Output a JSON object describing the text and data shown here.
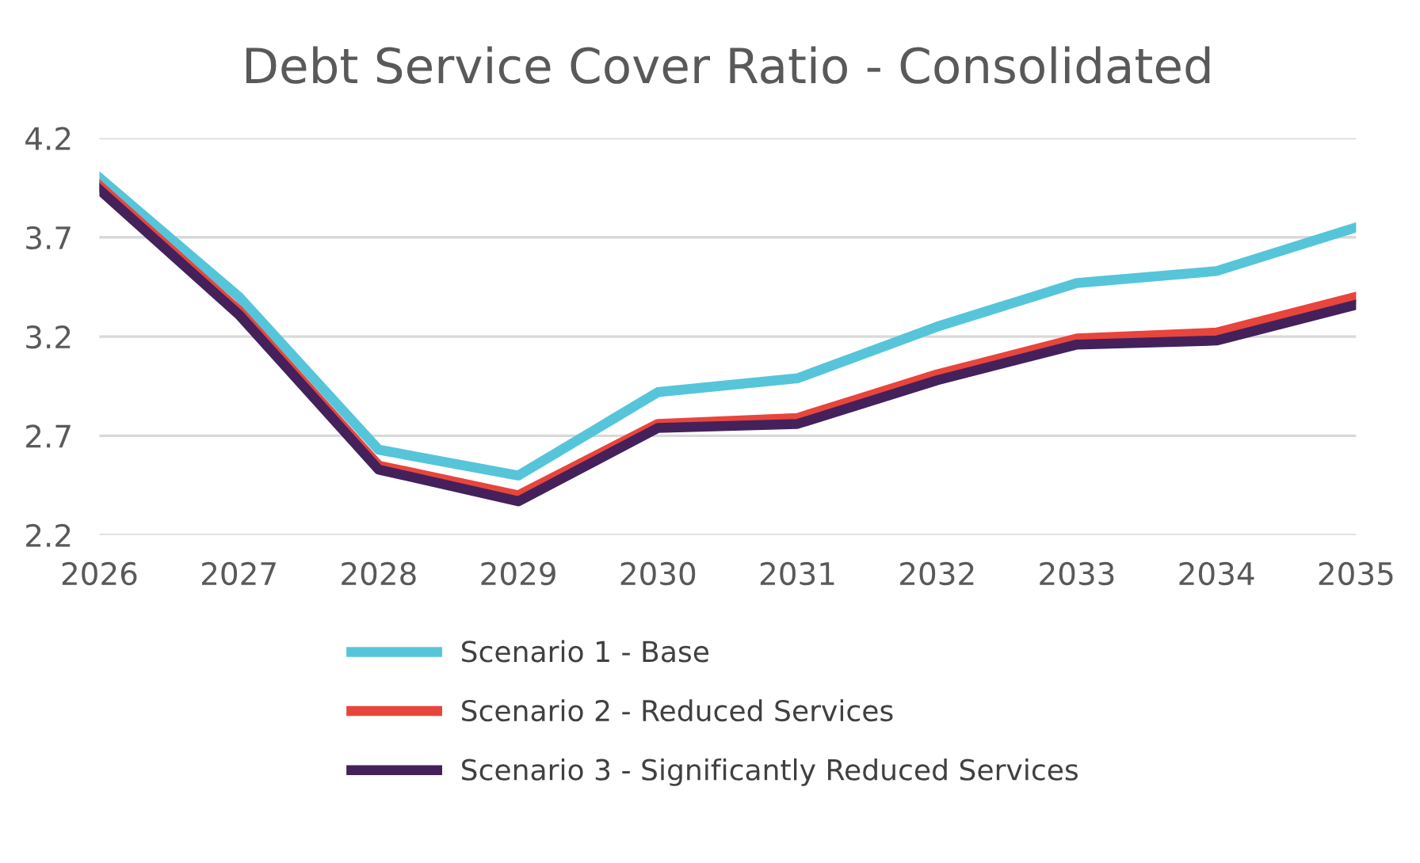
{
  "chart_data": {
    "type": "line",
    "title": "Debt Service Cover Ratio - Consolidated",
    "categories": [
      "2026",
      "2027",
      "2028",
      "2029",
      "2030",
      "2031",
      "2032",
      "2033",
      "2034",
      "2035"
    ],
    "series": [
      {
        "name": "Scenario 1 - Base",
        "color": "#56c5d9",
        "values": [
          4.0,
          3.4,
          2.63,
          2.5,
          2.92,
          2.99,
          3.25,
          3.47,
          3.53,
          3.75
        ]
      },
      {
        "name": "Scenario 2 - Reduced Services",
        "color": "#e8453c",
        "values": [
          3.96,
          3.33,
          2.55,
          2.4,
          2.76,
          2.79,
          3.01,
          3.19,
          3.22,
          3.4
        ]
      },
      {
        "name": "Scenario 3 - Significantly Reduced Services",
        "color": "#44215a",
        "values": [
          3.94,
          3.31,
          2.53,
          2.37,
          2.74,
          2.76,
          2.98,
          3.16,
          3.18,
          3.36
        ]
      }
    ],
    "ylim": [
      2.2,
      4.2
    ],
    "yticks": [
      2.2,
      2.7,
      3.2,
      3.7,
      4.2
    ],
    "grid": "y",
    "legend": "bottom",
    "marker": "none",
    "line_style": "solid"
  }
}
